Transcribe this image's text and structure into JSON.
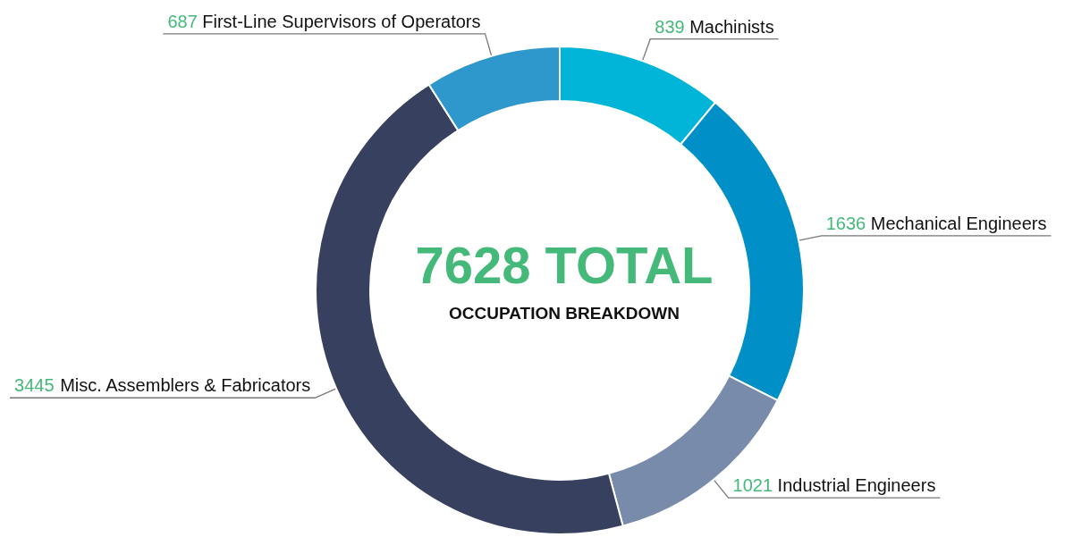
{
  "chart_data": {
    "type": "donut",
    "title": "7628 TOTAL",
    "subtitle": "OCCUPATION BREAKDOWN",
    "categories": [
      "Machinists",
      "Mechanical Engineers",
      "Industrial Engineers",
      "Misc. Assemblers & Fabricators",
      "First-Line Supervisors of Operators"
    ],
    "values": [
      839,
      1636,
      1021,
      3445,
      687
    ],
    "colors": [
      "#00b5d8",
      "#008fc7",
      "#788bab",
      "#37405e",
      "#2e98cc"
    ],
    "data_labels": true
  }
}
